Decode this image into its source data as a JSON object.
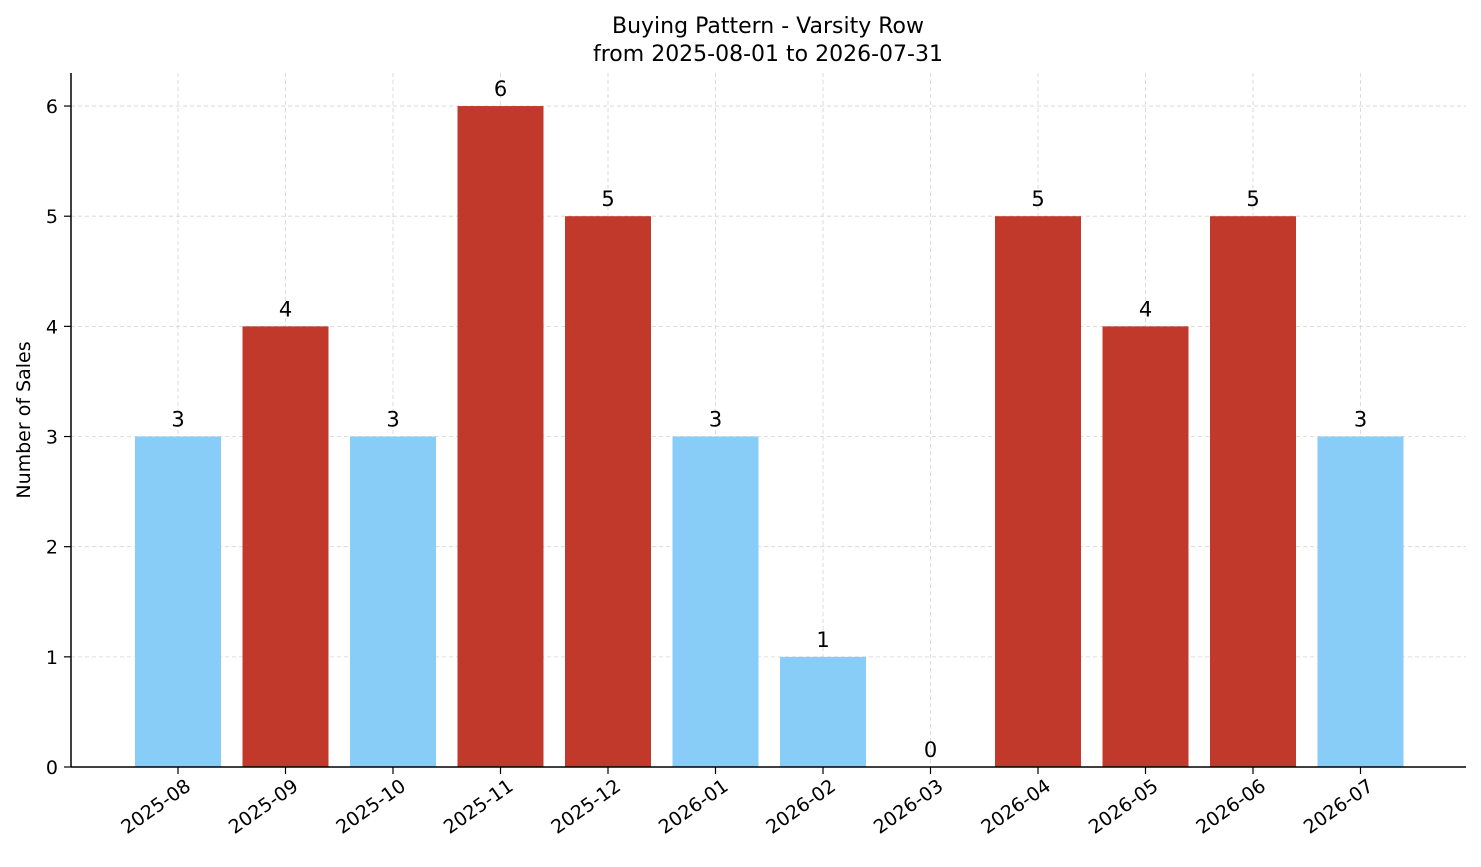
{
  "chart_data": {
    "type": "bar",
    "title": "Buying Pattern - Varsity Row",
    "subtitle": "from 2025-08-01 to 2026-07-31",
    "xlabel": "",
    "ylabel": "Number of Sales",
    "categories": [
      "2025-08",
      "2025-09",
      "2025-10",
      "2025-11",
      "2025-12",
      "2026-01",
      "2026-02",
      "2026-03",
      "2026-04",
      "2026-05",
      "2026-06",
      "2026-07"
    ],
    "values": [
      3,
      4,
      3,
      6,
      5,
      3,
      1,
      0,
      5,
      4,
      5,
      3
    ],
    "bar_colors": [
      "#87cdf7",
      "#c0392b",
      "#87cdf7",
      "#c0392b",
      "#c0392b",
      "#87cdf7",
      "#87cdf7",
      "#87cdf7",
      "#c0392b",
      "#c0392b",
      "#c0392b",
      "#87cdf7"
    ],
    "ylim": [
      0,
      6.3
    ],
    "yticks": [
      0,
      1,
      2,
      3,
      4,
      5,
      6
    ],
    "grid": true,
    "legend": "none"
  }
}
